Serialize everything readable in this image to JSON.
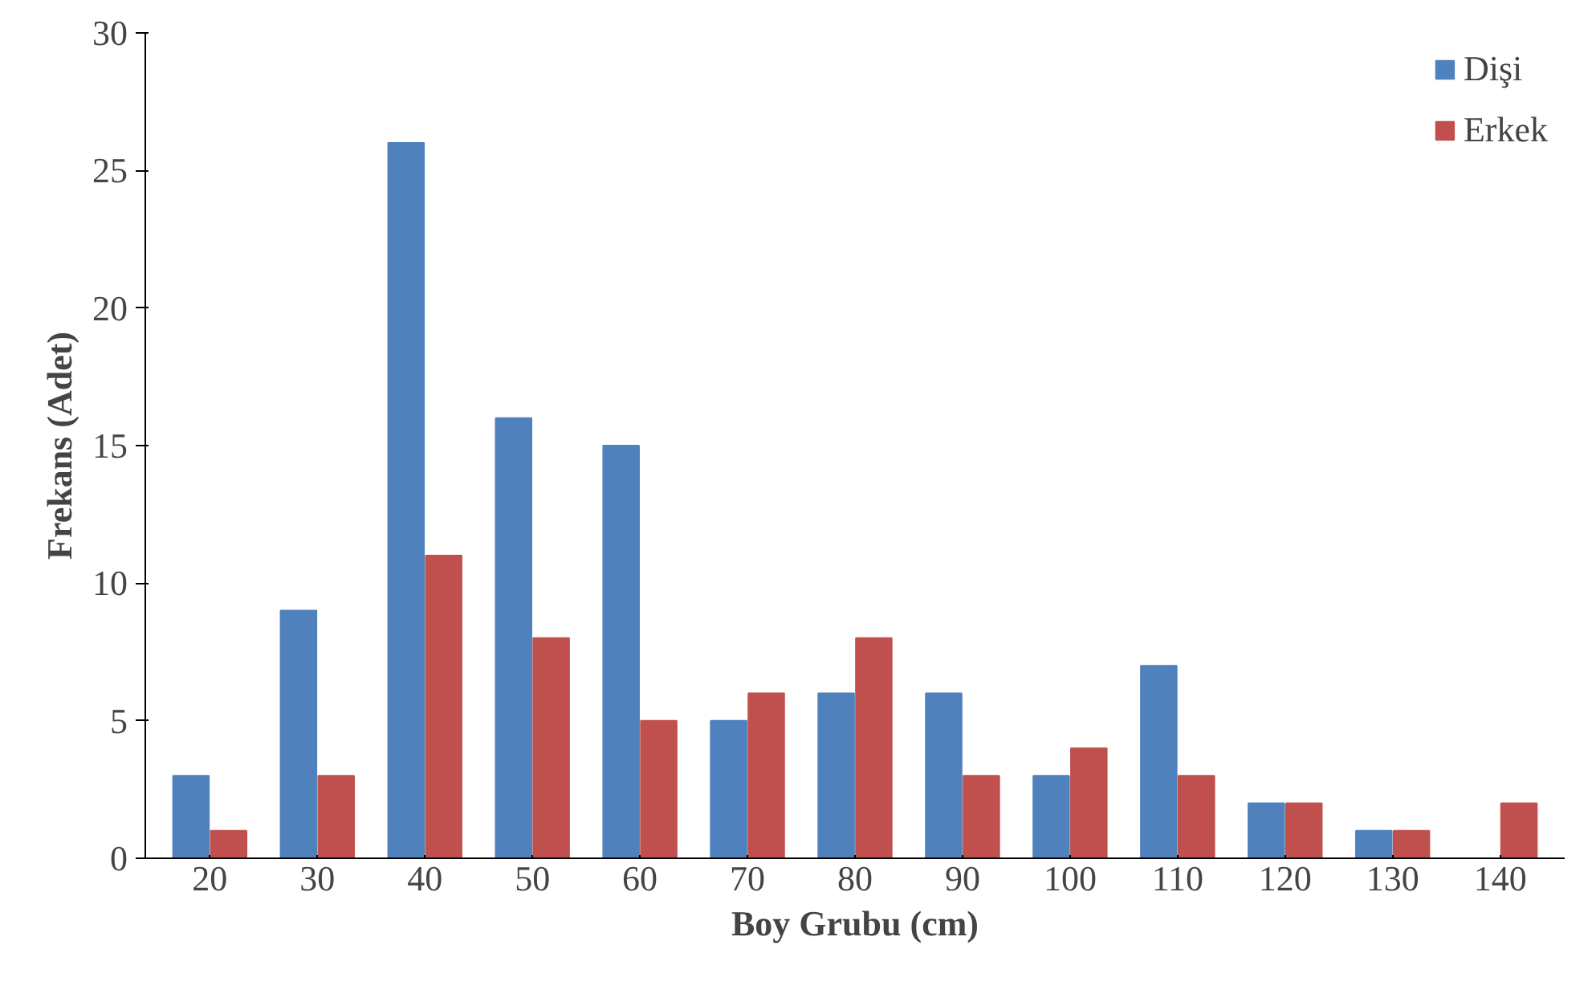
{
  "chart_data": {
    "type": "bar",
    "xlabel": "Boy Grubu (cm)",
    "ylabel": "Frekans (Adet)",
    "categories": [
      "20",
      "30",
      "40",
      "50",
      "60",
      "70",
      "80",
      "90",
      "100",
      "110",
      "120",
      "130",
      "140"
    ],
    "series": [
      {
        "name": "Dişi",
        "color": "#4f81bd",
        "values": [
          3,
          9,
          26,
          16,
          15,
          5,
          6,
          6,
          3,
          7,
          2,
          1,
          0
        ]
      },
      {
        "name": "Erkek",
        "color": "#c0504d",
        "values": [
          1,
          3,
          11,
          8,
          5,
          6,
          8,
          3,
          4,
          3,
          2,
          1,
          2
        ]
      }
    ],
    "ylim": [
      0,
      30
    ],
    "yticks": [
      0,
      5,
      10,
      15,
      20,
      25,
      30
    ],
    "grid": false,
    "legend": "top right"
  }
}
